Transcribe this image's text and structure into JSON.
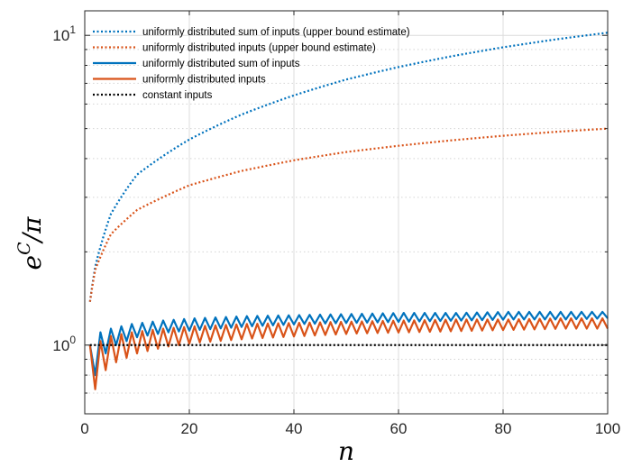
{
  "chart_data": {
    "type": "line",
    "title": "",
    "xlabel": "n",
    "ylabel_base": "e",
    "ylabel_sup": "C",
    "ylabel_tail": "/π",
    "x_scale": "linear",
    "y_scale": "log",
    "xlim": [
      0,
      100
    ],
    "ylim": [
      0.6,
      12
    ],
    "grid": true,
    "legend_position": "top-left",
    "x_ticks": [
      {
        "value": 0,
        "label": "0"
      },
      {
        "value": 20,
        "label": "20"
      },
      {
        "value": 40,
        "label": "40"
      },
      {
        "value": 60,
        "label": "60"
      },
      {
        "value": 80,
        "label": "80"
      },
      {
        "value": 100,
        "label": "100"
      }
    ],
    "y_ticks_major": [
      {
        "value": 1,
        "base": "10",
        "exp": "0"
      },
      {
        "value": 10,
        "base": "10",
        "exp": "1"
      }
    ],
    "x_start": 1,
    "x_end": 100,
    "series": [
      {
        "name": "uniformly distributed sum of inputs (upper bound estimate)",
        "color": "#0072BD",
        "style": "dotted",
        "sample_x": [
          1,
          2,
          5,
          10,
          20,
          30,
          40,
          50,
          60,
          70,
          80,
          90,
          100
        ],
        "sample_y": [
          1.38,
          1.79,
          2.65,
          3.55,
          4.61,
          5.55,
          6.4,
          7.2,
          7.9,
          8.55,
          9.15,
          9.7,
          10.2
        ]
      },
      {
        "name": "uniformly distributed inputs (upper bound estimate)",
        "color": "#D95319",
        "style": "dotted",
        "sample_x": [
          1,
          2,
          5,
          10,
          20,
          30,
          40,
          50,
          60,
          70,
          80,
          90,
          100
        ],
        "sample_y": [
          1.38,
          1.75,
          2.28,
          2.73,
          3.28,
          3.65,
          3.95,
          4.2,
          4.4,
          4.58,
          4.74,
          4.88,
          5.0
        ]
      },
      {
        "name": "uniformly distributed sum of inputs",
        "color": "#0072BD",
        "style": "solid",
        "odd_x": [
          1,
          3,
          5,
          9,
          15,
          21,
          31,
          41,
          51,
          61,
          71,
          81,
          91,
          99
        ],
        "odd_y": [
          1.0,
          1.1,
          1.13,
          1.17,
          1.2,
          1.22,
          1.24,
          1.25,
          1.26,
          1.27,
          1.27,
          1.28,
          1.28,
          1.28
        ],
        "even_x": [
          2,
          4,
          6,
          10,
          16,
          22,
          32,
          42,
          52,
          62,
          72,
          82,
          92,
          100
        ],
        "even_y": [
          0.8,
          0.94,
          1.0,
          1.06,
          1.1,
          1.12,
          1.15,
          1.17,
          1.18,
          1.19,
          1.2,
          1.21,
          1.21,
          1.22
        ]
      },
      {
        "name": "uniformly distributed inputs",
        "color": "#D95319",
        "style": "solid",
        "odd_x": [
          1,
          3,
          5,
          9,
          15,
          21,
          31,
          41,
          51,
          61,
          71,
          81,
          91,
          99
        ],
        "odd_y": [
          1.0,
          1.03,
          1.07,
          1.1,
          1.13,
          1.15,
          1.17,
          1.18,
          1.19,
          1.2,
          1.21,
          1.21,
          1.22,
          1.22
        ],
        "even_x": [
          2,
          4,
          6,
          10,
          16,
          22,
          32,
          42,
          52,
          62,
          72,
          82,
          92,
          100
        ],
        "even_y": [
          0.72,
          0.83,
          0.88,
          0.94,
          0.99,
          1.02,
          1.05,
          1.07,
          1.09,
          1.1,
          1.11,
          1.12,
          1.13,
          1.13
        ]
      },
      {
        "name": "constant inputs",
        "color": "#000000",
        "style": "dotted",
        "sample_x": [
          1,
          100
        ],
        "sample_y": [
          1.0,
          1.0
        ]
      }
    ]
  }
}
